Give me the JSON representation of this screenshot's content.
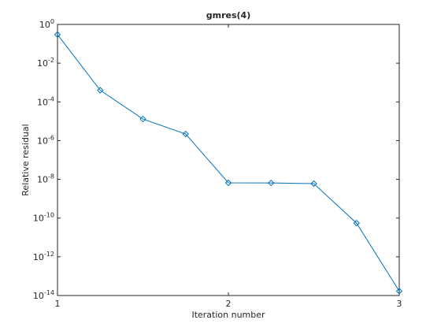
{
  "chart_data": {
    "type": "line",
    "title": "gmres(4)",
    "x_label": "Iteration number",
    "y_label": "Relative residual",
    "log_y": true,
    "grid": false,
    "x": [
      1,
      1.25,
      1.5,
      1.75,
      2,
      2.25,
      2.5,
      2.75,
      3
    ],
    "series": [
      {
        "name": "residual",
        "color": "#0072bd",
        "values": [
          0.3,
          0.0004,
          1.3e-05,
          2.2e-06,
          6.6e-09,
          6.5e-09,
          6e-09,
          5.5e-11,
          1.7e-14
        ]
      }
    ],
    "xlim": [
      1,
      3
    ],
    "xticks": [
      1,
      2,
      3
    ],
    "ylim": [
      1e-14,
      1
    ],
    "yticks": [
      {
        "value": 1e-14,
        "label": "10^-14"
      },
      {
        "value": 1e-12,
        "label": "10^-12"
      },
      {
        "value": 1e-10,
        "label": "10^-10"
      },
      {
        "value": 1e-08,
        "label": "10^-8"
      },
      {
        "value": 1e-06,
        "label": "10^-6"
      },
      {
        "value": 0.0001,
        "label": "10^-4"
      },
      {
        "value": 0.01,
        "label": "10^-2"
      },
      {
        "value": 1,
        "label": "10^0"
      }
    ]
  }
}
